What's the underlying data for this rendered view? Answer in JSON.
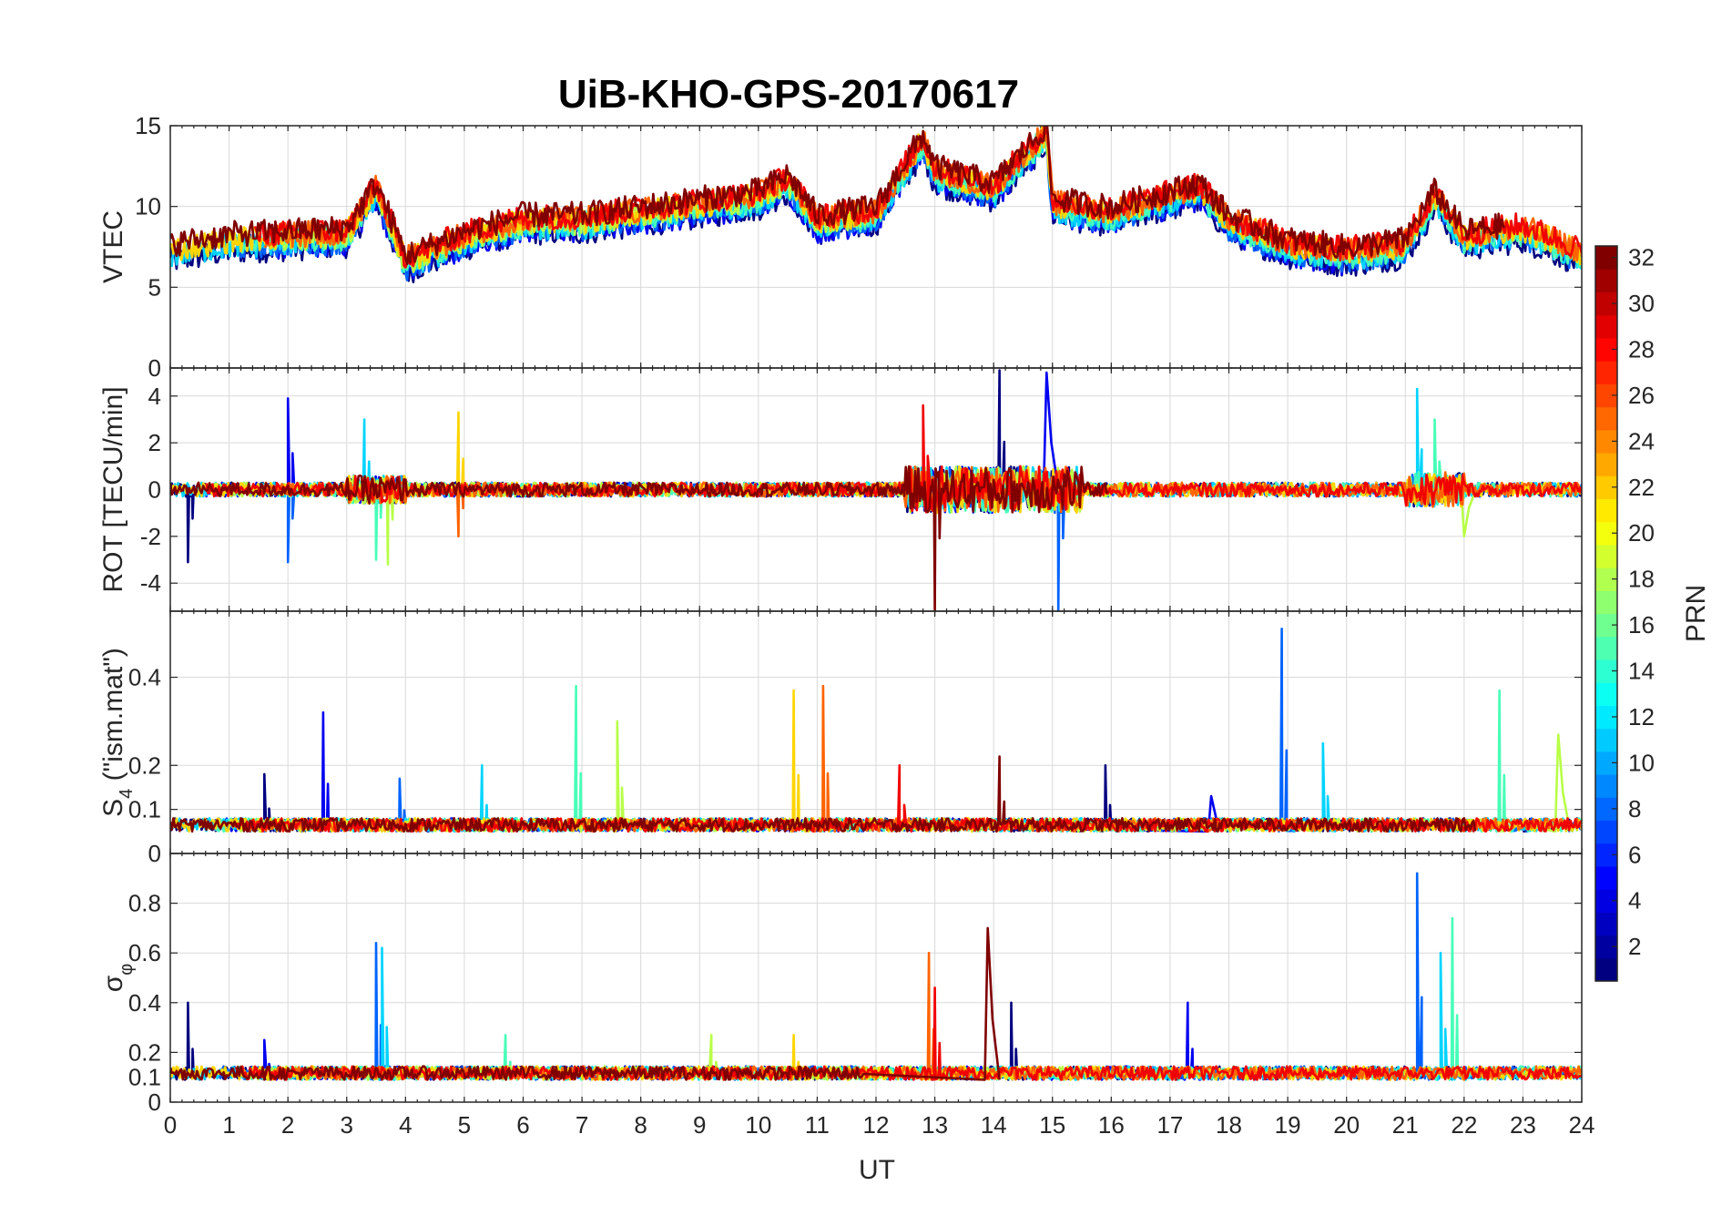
{
  "chart_data": {
    "type": "line",
    "title": "UiB-KHO-GPS-20170617",
    "xlabel": "UT",
    "x_ticks": [
      "0",
      "1",
      "2",
      "3",
      "4",
      "5",
      "6",
      "7",
      "8",
      "9",
      "10",
      "11",
      "12",
      "13",
      "14",
      "15",
      "16",
      "17",
      "18",
      "19",
      "20",
      "21",
      "22",
      "23",
      "24"
    ],
    "xlim": [
      0,
      24
    ],
    "colorbar": {
      "label": "PRN",
      "range": [
        1,
        32
      ],
      "colormap": "jet",
      "ticks": [
        "2",
        "4",
        "6",
        "8",
        "10",
        "12",
        "14",
        "16",
        "18",
        "20",
        "22",
        "24",
        "26",
        "28",
        "30",
        "32"
      ]
    },
    "panels": [
      {
        "ylabel": "VTEC",
        "ylim": [
          0,
          15
        ],
        "y_ticks": [
          "0",
          "5",
          "10",
          "15"
        ],
        "series_summary": {
          "baseline": 7.5,
          "points": [
            [
              0,
              7.2
            ],
            [
              1,
              7.8
            ],
            [
              2,
              8.0
            ],
            [
              3,
              8.2
            ],
            [
              3.5,
              11.0
            ],
            [
              4,
              6.5
            ],
            [
              5,
              8.0
            ],
            [
              6,
              9.0
            ],
            [
              7,
              9.0
            ],
            [
              8,
              9.5
            ],
            [
              9,
              10.0
            ],
            [
              10,
              10.5
            ],
            [
              10.5,
              11.5
            ],
            [
              11,
              9.0
            ],
            [
              12,
              9.5
            ],
            [
              12.8,
              14.0
            ],
            [
              13,
              12.0
            ],
            [
              14,
              11.0
            ],
            [
              14.9,
              14.5
            ],
            [
              15,
              10.0
            ],
            [
              16,
              9.5
            ],
            [
              17,
              10.5
            ],
            [
              17.5,
              11.0
            ],
            [
              18,
              9.0
            ],
            [
              19,
              7.5
            ],
            [
              20,
              7.0
            ],
            [
              21,
              7.5
            ],
            [
              21.5,
              10.5
            ],
            [
              22,
              8.0
            ],
            [
              23,
              8.5
            ],
            [
              24,
              7.0
            ]
          ]
        }
      },
      {
        "ylabel": "ROT [TECU/min]",
        "ylim": [
          -5.2,
          5.2
        ],
        "y_ticks": [
          "-4",
          "-2",
          "0",
          "2",
          "4"
        ],
        "series_summary": {
          "baseline": 0,
          "spikes": [
            [
              0.3,
              -3.1
            ],
            [
              2.0,
              3.9
            ],
            [
              2.0,
              -3.1
            ],
            [
              3.3,
              3.0
            ],
            [
              3.5,
              -3.0
            ],
            [
              3.7,
              -3.2
            ],
            [
              4.9,
              3.3
            ],
            [
              4.9,
              -2.0
            ],
            [
              12.8,
              3.6
            ],
            [
              13.0,
              -5.2
            ],
            [
              14.1,
              5.1
            ],
            [
              14.9,
              5.0
            ],
            [
              15.1,
              -5.2
            ],
            [
              21.2,
              4.3
            ],
            [
              21.5,
              3.0
            ],
            [
              22,
              -2.0
            ]
          ],
          "noise_amplitude": 0.6,
          "bursts": [
            [
              12.5,
              15.5,
              2.0
            ],
            [
              21,
              22,
              1.5
            ],
            [
              3,
              4,
              1.2
            ]
          ]
        }
      },
      {
        "ylabel": "S4 (\"ism.mat\")",
        "ylabel_main": "S",
        "ylabel_sub": "4",
        "ylabel_rest": " (\"ism.mat\")",
        "ylim": [
          0,
          0.55
        ],
        "y_ticks": [
          "0",
          "0.1",
          "0.2",
          "0.4"
        ],
        "y_tick_values": [
          0,
          0.1,
          0.2,
          0.4
        ],
        "series_summary": {
          "baseline": 0.05,
          "peaks": [
            [
              1.6,
              0.18
            ],
            [
              2.6,
              0.32
            ],
            [
              3.9,
              0.17
            ],
            [
              5.3,
              0.2
            ],
            [
              6.9,
              0.38
            ],
            [
              7.6,
              0.3
            ],
            [
              10.6,
              0.37
            ],
            [
              11.1,
              0.38
            ],
            [
              12.4,
              0.2
            ],
            [
              14.1,
              0.22
            ],
            [
              15.9,
              0.2
            ],
            [
              17.7,
              0.13
            ],
            [
              18.9,
              0.51
            ],
            [
              19.6,
              0.25
            ],
            [
              22.6,
              0.37
            ],
            [
              23.6,
              0.27
            ]
          ]
        }
      },
      {
        "ylabel": "σφ",
        "ylabel_main": "σ",
        "ylabel_sub": "φ",
        "ylim": [
          0,
          1
        ],
        "y_ticks": [
          "0",
          "0.1",
          "0.2",
          "0.4",
          "0.6",
          "0.8"
        ],
        "y_tick_values": [
          0,
          0.1,
          0.2,
          0.4,
          0.6,
          0.8
        ],
        "series_summary": {
          "baseline": 0.09,
          "peaks": [
            [
              0.3,
              0.4
            ],
            [
              1.6,
              0.25
            ],
            [
              3.5,
              0.64
            ],
            [
              3.6,
              0.62
            ],
            [
              5.7,
              0.27
            ],
            [
              9.2,
              0.27
            ],
            [
              10.6,
              0.27
            ],
            [
              12.9,
              0.6
            ],
            [
              13.0,
              0.46
            ],
            [
              13.9,
              0.7
            ],
            [
              14.3,
              0.4
            ],
            [
              17.3,
              0.4
            ],
            [
              21.2,
              0.92
            ],
            [
              21.6,
              0.6
            ],
            [
              21.8,
              0.74
            ]
          ]
        }
      }
    ]
  }
}
